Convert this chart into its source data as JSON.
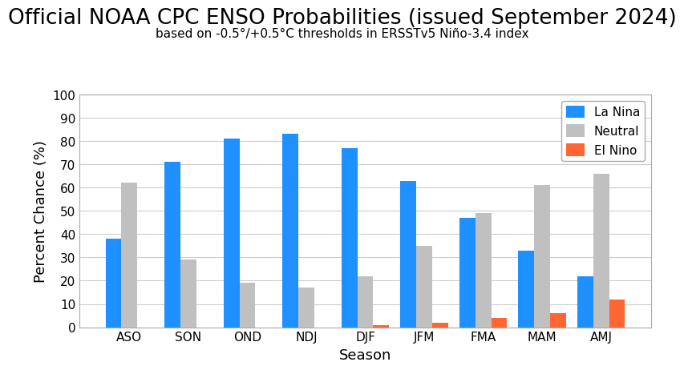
{
  "title": "Official NOAA CPC ENSO Probabilities (issued September 2024)",
  "subtitle": "based on -0.5°/+0.5°C thresholds in ERSSTv5 Niño-3.4 index",
  "seasons": [
    "ASO",
    "SON",
    "OND",
    "NDJ",
    "DJF",
    "JFM",
    "FMA",
    "MAM",
    "AMJ"
  ],
  "la_nina": [
    38,
    71,
    81,
    83,
    77,
    63,
    47,
    33,
    22
  ],
  "neutral": [
    62,
    29,
    19,
    17,
    22,
    35,
    49,
    61,
    66
  ],
  "el_nino": [
    0,
    0,
    0,
    0,
    1,
    2,
    4,
    6,
    12
  ],
  "la_nina_color": "#1E90FF",
  "neutral_color": "#C0C0C0",
  "el_nino_color": "#FF6633",
  "xlabel": "Season",
  "ylabel": "Percent Chance (%)",
  "ylim": [
    0,
    100
  ],
  "yticks": [
    0,
    10,
    20,
    30,
    40,
    50,
    60,
    70,
    80,
    90,
    100
  ],
  "title_fontsize": 19,
  "subtitle_fontsize": 11,
  "axis_label_fontsize": 13,
  "tick_fontsize": 11,
  "legend_fontsize": 11,
  "bar_width": 0.27,
  "background_color": "#FFFFFF",
  "grid_color": "#CCCCCC"
}
